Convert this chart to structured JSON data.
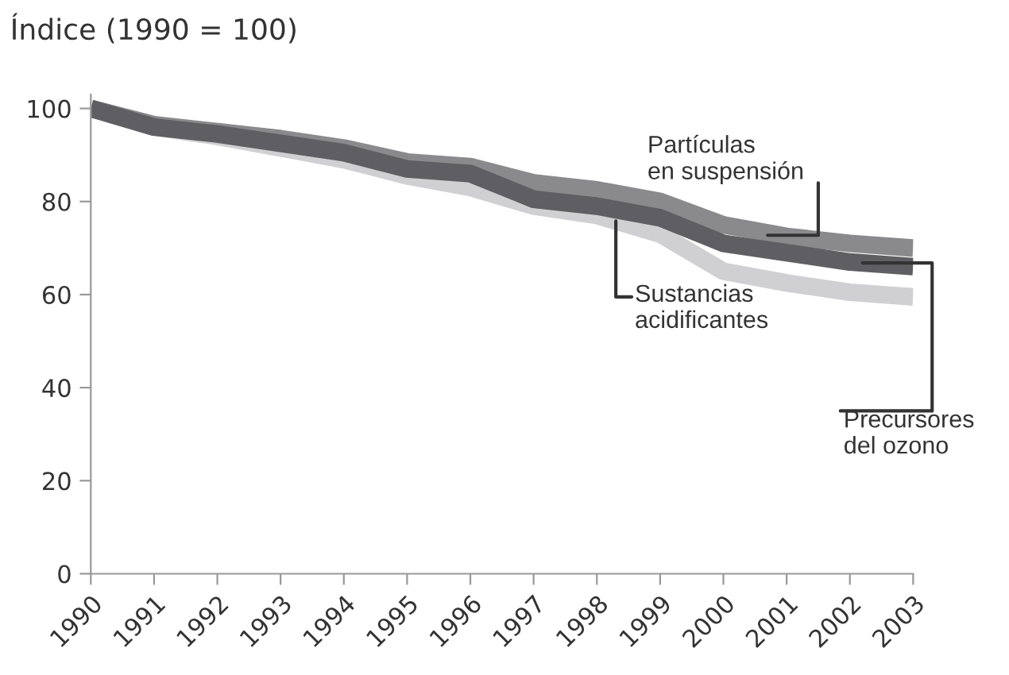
{
  "chart_data": {
    "type": "line",
    "ylabel": "Índice (1990 = 100)",
    "x": [
      1990,
      1991,
      1992,
      1993,
      1994,
      1995,
      1996,
      1997,
      1998,
      1999,
      2000,
      2001,
      2002,
      2003
    ],
    "xlim": [
      1990,
      2003
    ],
    "xticks": [
      1990,
      1991,
      1992,
      1993,
      1994,
      1995,
      1996,
      1997,
      1998,
      1999,
      2000,
      2001,
      2002,
      2003
    ],
    "ylim": [
      0,
      103
    ],
    "yticks": [
      0,
      20,
      40,
      60,
      80,
      100
    ],
    "grid": false,
    "legend": false,
    "marker": "none",
    "line_style": "solid",
    "series": [
      {
        "name": "Sustancias acidificantes",
        "color": "#d0d0d2",
        "values": [
          100,
          96,
          94,
          91.5,
          89,
          85.5,
          83,
          79,
          77,
          73,
          65,
          62.5,
          60.5,
          59.5
        ]
      },
      {
        "name": "Partículas en suspensión",
        "color": "#8a8a8c",
        "values": [
          100,
          96.5,
          95,
          93.5,
          91.5,
          88.5,
          87.5,
          84,
          82.5,
          80,
          75,
          72.5,
          71,
          70
        ]
      },
      {
        "name": "Precursores del ozono",
        "color": "#5f5f63",
        "values": [
          100,
          96,
          94.5,
          92.5,
          90.5,
          87,
          86,
          80.5,
          79,
          76.5,
          71,
          69,
          67,
          66
        ]
      }
    ]
  }
}
